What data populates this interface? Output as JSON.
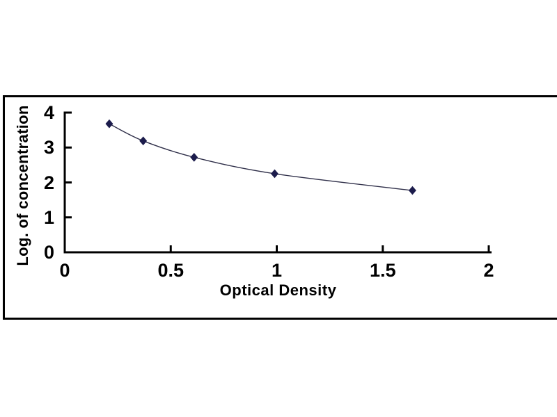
{
  "chart_data": {
    "type": "line",
    "title": "",
    "xlabel": "Optical Density",
    "ylabel": "Log. of concentration",
    "x": [
      0.21,
      0.37,
      0.61,
      0.99,
      1.64
    ],
    "y": [
      3.68,
      3.19,
      2.72,
      2.25,
      1.77
    ],
    "xlim": [
      0,
      2
    ],
    "ylim": [
      0,
      4
    ],
    "xticks": [
      0,
      0.5,
      1,
      1.5,
      2
    ],
    "xtick_labels": [
      "0",
      "0.5",
      "1",
      "1.5",
      "2"
    ],
    "yticks": [
      0,
      1,
      2,
      3,
      4
    ],
    "ytick_labels": [
      "0",
      "1",
      "2",
      "3",
      "4"
    ],
    "grid": false,
    "legend": "none",
    "marker": "diamond",
    "colors": {
      "marker": "#1c1c4c",
      "line": "#30304a",
      "axis": "#000000",
      "frame": "#000000",
      "background": "#ffffff",
      "text": "#000000"
    }
  }
}
